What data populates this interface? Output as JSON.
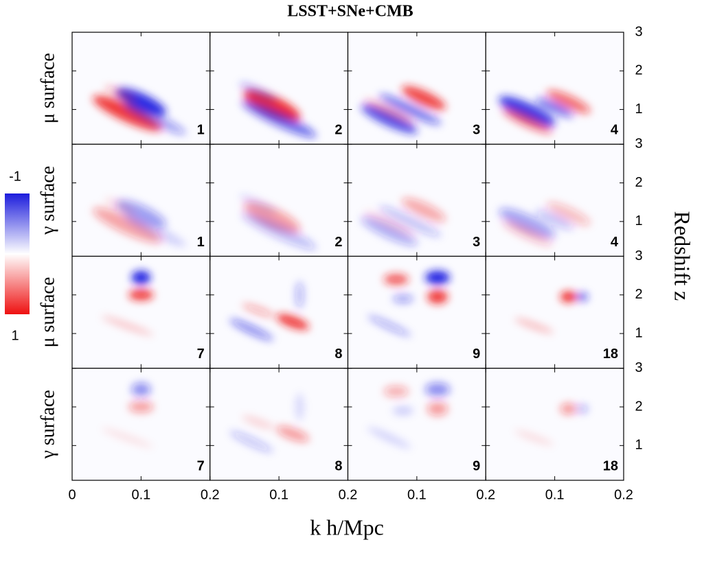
{
  "chart_data": {
    "type": "heatmap",
    "title": "LSST+SNe+CMB",
    "xlabel": "k h/Mpc",
    "ylabel": "Redshift z",
    "row_labels": [
      "μ surface",
      "γ surface",
      "μ surface",
      "γ surface"
    ],
    "panel_labels": [
      [
        1,
        2,
        3,
        4
      ],
      [
        1,
        2,
        3,
        4
      ],
      [
        7,
        8,
        9,
        18
      ],
      [
        7,
        8,
        9,
        18
      ]
    ],
    "xlim": [
      0,
      0.2
    ],
    "xticks": [
      0,
      0.1,
      0.2
    ],
    "ylim": [
      0.1,
      3
    ],
    "yticks": [
      1,
      2,
      3
    ],
    "colorbar": {
      "lim": [
        -1,
        1
      ],
      "ticks": [
        -1,
        1
      ]
    }
  }
}
